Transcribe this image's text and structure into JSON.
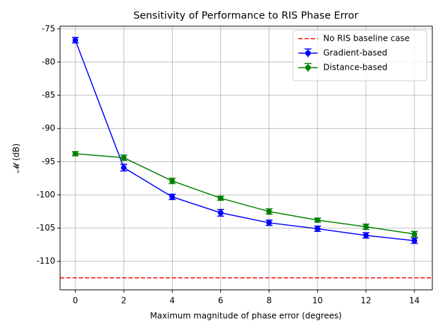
{
  "chart_data": {
    "type": "line",
    "title": "Sensitivity of Performance to RIS Phase Error",
    "xlabel": "Maximum magnitude of phase error (degrees)",
    "ylabel": "𝓜 (dB)",
    "x": [
      0,
      2,
      4,
      6,
      8,
      10,
      12,
      14
    ],
    "series": [
      {
        "name": "Gradient-based",
        "color": "#0000ff",
        "values": [
          -76.7,
          -95.9,
          -100.3,
          -102.7,
          -104.2,
          -105.1,
          -106.1,
          -106.9
        ],
        "errors": [
          0.4,
          0.5,
          0.4,
          0.5,
          0.4,
          0.4,
          0.4,
          0.4
        ]
      },
      {
        "name": "Distance-based",
        "color": "#008000",
        "values": [
          -93.8,
          -94.4,
          -97.9,
          -100.5,
          -102.5,
          -103.8,
          -104.8,
          -105.9
        ],
        "errors": [
          0.3,
          0.4,
          0.4,
          0.3,
          0.4,
          0.3,
          0.4,
          0.4
        ]
      }
    ],
    "hlines": [
      {
        "name": "No RIS baseline case",
        "color": "#ff0000",
        "value": -112.5
      }
    ],
    "xlim": [
      -0.63,
      14.74
    ],
    "ylim": [
      -114.3,
      -74.6
    ],
    "xticks": [
      0,
      2,
      4,
      6,
      8,
      10,
      12,
      14
    ],
    "yticks": [
      -110,
      -105,
      -100,
      -95,
      -90,
      -85,
      -80,
      -75
    ],
    "grid": true,
    "legend": "upper right"
  }
}
